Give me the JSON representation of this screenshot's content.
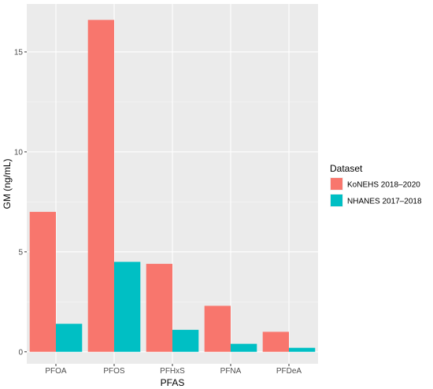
{
  "chart_data": {
    "type": "bar",
    "categories": [
      "PFOA",
      "PFOS",
      "PFHxS",
      "PFNA",
      "PFDeA"
    ],
    "series": [
      {
        "name": "KoNEHS 2018–2020",
        "values": [
          7.0,
          16.6,
          4.4,
          2.3,
          1.0
        ],
        "color": "#F8766D"
      },
      {
        "name": "NHANES 2017–2018",
        "values": [
          1.4,
          4.5,
          1.1,
          0.4,
          0.2
        ],
        "color": "#00BFC4"
      }
    ],
    "xlabel": "PFAS",
    "ylabel": "GM (ng/mL)",
    "ylim": [
      -0.6,
      17.4
    ],
    "yticks": [
      0,
      5,
      10,
      15
    ],
    "grid": true,
    "panel_background": "#EBEBEB",
    "legend": {
      "title": "Dataset",
      "placement": "right"
    }
  }
}
